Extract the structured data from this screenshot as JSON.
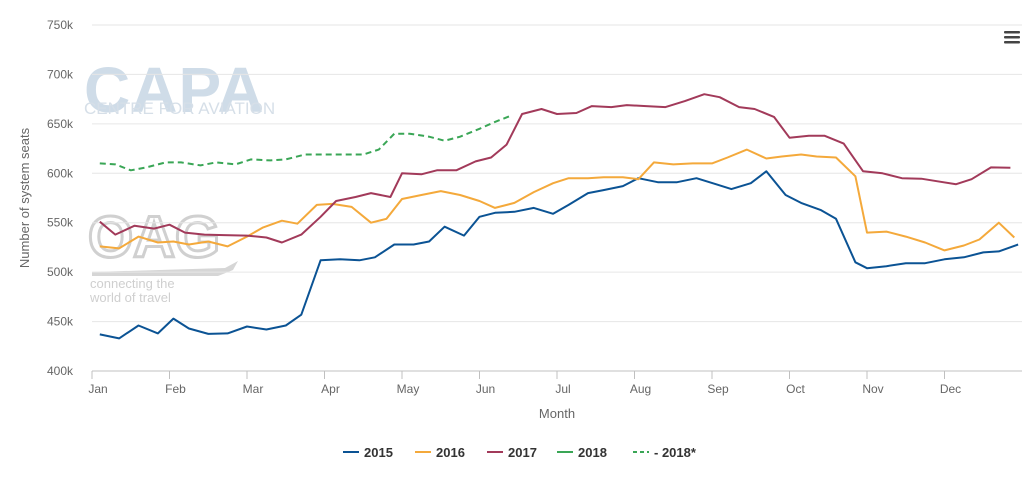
{
  "watermarks": {
    "capa_title": "CAPA",
    "capa_subtitle": "CENTRE FOR AVIATION",
    "oag_title": "OAG",
    "oag_line1": "connecting the",
    "oag_line2": "world of travel"
  },
  "icons": {
    "menu": "hamburger-menu-icon"
  },
  "chart_data": {
    "type": "line",
    "xlabel": "Month",
    "ylabel": "Number of system seats",
    "ylim": [
      400000,
      750000
    ],
    "yticks": [
      400000,
      450000,
      500000,
      550000,
      600000,
      650000,
      700000,
      750000
    ],
    "ytick_labels": [
      "400k",
      "450k",
      "500k",
      "550k",
      "600k",
      "650k",
      "700k",
      "750k"
    ],
    "xlim": [
      0,
      12
    ],
    "xticks": [
      0,
      1,
      2,
      3,
      4,
      5,
      6,
      7,
      8,
      9,
      10,
      11
    ],
    "xtick_labels": [
      "Jan",
      "Feb",
      "Mar",
      "Apr",
      "May",
      "Jun",
      "Jul",
      "Aug",
      "Sep",
      "Oct",
      "Nov",
      "Dec"
    ],
    "grid": true,
    "legend": "bottom",
    "series": [
      {
        "name": "2015",
        "color": "#0b5394",
        "dashed": false,
        "points": [
          [
            0.1,
            437000
          ],
          [
            0.35,
            433000
          ],
          [
            0.6,
            446000
          ],
          [
            0.85,
            438000
          ],
          [
            1.05,
            453000
          ],
          [
            1.25,
            443000
          ],
          [
            1.5,
            437500
          ],
          [
            1.75,
            438000
          ],
          [
            2.0,
            445000
          ],
          [
            2.25,
            442000
          ],
          [
            2.5,
            446000
          ],
          [
            2.7,
            457000
          ],
          [
            2.95,
            512000
          ],
          [
            3.2,
            513000
          ],
          [
            3.45,
            512000
          ],
          [
            3.65,
            515000
          ],
          [
            3.9,
            528000
          ],
          [
            4.15,
            528000
          ],
          [
            4.35,
            531000
          ],
          [
            4.55,
            546000
          ],
          [
            4.8,
            537000
          ],
          [
            5.0,
            556000
          ],
          [
            5.2,
            560000
          ],
          [
            5.45,
            561000
          ],
          [
            5.7,
            565000
          ],
          [
            5.95,
            559000
          ],
          [
            6.15,
            568000
          ],
          [
            6.4,
            580000
          ],
          [
            6.6,
            583000
          ],
          [
            6.85,
            587000
          ],
          [
            7.05,
            595000
          ],
          [
            7.3,
            591000
          ],
          [
            7.55,
            591000
          ],
          [
            7.8,
            595000
          ],
          [
            8.05,
            589000
          ],
          [
            8.25,
            584000
          ],
          [
            8.5,
            590000
          ],
          [
            8.7,
            602000
          ],
          [
            8.95,
            578000
          ],
          [
            9.15,
            570000
          ],
          [
            9.4,
            563000
          ],
          [
            9.6,
            554000
          ],
          [
            9.85,
            510000
          ],
          [
            10.0,
            504000
          ],
          [
            10.25,
            506000
          ],
          [
            10.5,
            509000
          ],
          [
            10.75,
            509000
          ],
          [
            11.0,
            513000
          ],
          [
            11.25,
            515000
          ],
          [
            11.5,
            520000
          ],
          [
            11.7,
            521000
          ],
          [
            11.95,
            528000
          ]
        ]
      },
      {
        "name": "2016",
        "color": "#f4a93b",
        "dashed": false,
        "points": [
          [
            0.1,
            526000
          ],
          [
            0.35,
            524000
          ],
          [
            0.6,
            536000
          ],
          [
            0.85,
            530000
          ],
          [
            1.05,
            531000
          ],
          [
            1.25,
            528000
          ],
          [
            1.5,
            531000
          ],
          [
            1.75,
            526000
          ],
          [
            2.0,
            536000
          ],
          [
            2.2,
            545000
          ],
          [
            2.45,
            552000
          ],
          [
            2.65,
            549000
          ],
          [
            2.9,
            568000
          ],
          [
            3.1,
            569000
          ],
          [
            3.35,
            566000
          ],
          [
            3.6,
            550000
          ],
          [
            3.8,
            554000
          ],
          [
            4.0,
            574000
          ],
          [
            4.25,
            578000
          ],
          [
            4.5,
            582000
          ],
          [
            4.75,
            578000
          ],
          [
            5.0,
            572000
          ],
          [
            5.2,
            565000
          ],
          [
            5.45,
            570000
          ],
          [
            5.7,
            581000
          ],
          [
            5.95,
            590000
          ],
          [
            6.15,
            595000
          ],
          [
            6.4,
            595000
          ],
          [
            6.6,
            596000
          ],
          [
            6.85,
            596000
          ],
          [
            7.05,
            594000
          ],
          [
            7.25,
            611000
          ],
          [
            7.5,
            609000
          ],
          [
            7.75,
            610000
          ],
          [
            8.0,
            610000
          ],
          [
            8.2,
            616000
          ],
          [
            8.45,
            624000
          ],
          [
            8.7,
            615000
          ],
          [
            8.9,
            617000
          ],
          [
            9.15,
            619000
          ],
          [
            9.35,
            617000
          ],
          [
            9.6,
            616000
          ],
          [
            9.85,
            597000
          ],
          [
            10.0,
            540000
          ],
          [
            10.25,
            541000
          ],
          [
            10.5,
            536000
          ],
          [
            10.75,
            530000
          ],
          [
            11.0,
            522000
          ],
          [
            11.25,
            527000
          ],
          [
            11.45,
            533000
          ],
          [
            11.7,
            550000
          ],
          [
            11.9,
            535000
          ]
        ]
      },
      {
        "name": "2017",
        "color": "#a23a5a",
        "dashed": false,
        "points": [
          [
            0.1,
            551000
          ],
          [
            0.3,
            538000
          ],
          [
            0.55,
            547000
          ],
          [
            0.8,
            544000
          ],
          [
            1.0,
            548000
          ],
          [
            1.2,
            540000
          ],
          [
            1.45,
            538000
          ],
          [
            1.7,
            537500
          ],
          [
            2.0,
            537000
          ],
          [
            2.25,
            535000
          ],
          [
            2.45,
            530000
          ],
          [
            2.7,
            538000
          ],
          [
            2.95,
            556000
          ],
          [
            3.15,
            572000
          ],
          [
            3.4,
            576000
          ],
          [
            3.6,
            580000
          ],
          [
            3.85,
            576000
          ],
          [
            4.0,
            600000
          ],
          [
            4.25,
            599000
          ],
          [
            4.45,
            603000
          ],
          [
            4.7,
            603000
          ],
          [
            4.95,
            612000
          ],
          [
            5.15,
            616000
          ],
          [
            5.35,
            629000
          ],
          [
            5.55,
            660000
          ],
          [
            5.8,
            665000
          ],
          [
            6.0,
            660000
          ],
          [
            6.25,
            661000
          ],
          [
            6.45,
            668000
          ],
          [
            6.7,
            667000
          ],
          [
            6.9,
            669000
          ],
          [
            7.15,
            668000
          ],
          [
            7.4,
            667000
          ],
          [
            7.65,
            673000
          ],
          [
            7.9,
            680000
          ],
          [
            8.1,
            677000
          ],
          [
            8.35,
            667000
          ],
          [
            8.55,
            665000
          ],
          [
            8.8,
            657000
          ],
          [
            9.0,
            636000
          ],
          [
            9.25,
            638000
          ],
          [
            9.45,
            638000
          ],
          [
            9.7,
            630000
          ],
          [
            9.95,
            602000
          ],
          [
            10.2,
            600000
          ],
          [
            10.45,
            595000
          ],
          [
            10.7,
            594500
          ],
          [
            10.9,
            592000
          ],
          [
            11.15,
            589000
          ],
          [
            11.35,
            594000
          ],
          [
            11.6,
            606000
          ],
          [
            11.85,
            605500
          ]
        ]
      },
      {
        "name": "2018",
        "color": "#3aa656",
        "dashed": false,
        "points": []
      },
      {
        "name": "- 2018*",
        "color": "#3aa656",
        "dashed": true,
        "points": [
          [
            0.1,
            610000
          ],
          [
            0.3,
            609000
          ],
          [
            0.5,
            603000
          ],
          [
            0.7,
            606000
          ],
          [
            0.95,
            611000
          ],
          [
            1.15,
            611000
          ],
          [
            1.4,
            608000
          ],
          [
            1.6,
            611000
          ],
          [
            1.85,
            609000
          ],
          [
            2.05,
            614000
          ],
          [
            2.3,
            613000
          ],
          [
            2.5,
            614000
          ],
          [
            2.75,
            619000
          ],
          [
            3.0,
            619000
          ],
          [
            3.25,
            619000
          ],
          [
            3.5,
            619000
          ],
          [
            3.7,
            624000
          ],
          [
            3.9,
            640000
          ],
          [
            4.1,
            640000
          ],
          [
            4.35,
            637000
          ],
          [
            4.55,
            633000
          ],
          [
            4.75,
            637000
          ],
          [
            5.0,
            645000
          ],
          [
            5.2,
            652000
          ],
          [
            5.4,
            658000
          ]
        ]
      }
    ]
  }
}
